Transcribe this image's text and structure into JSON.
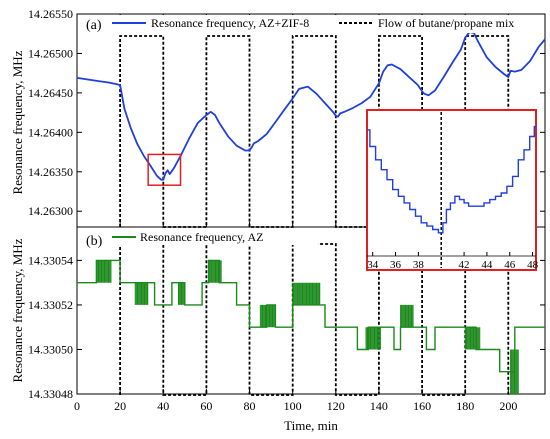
{
  "figure": {
    "x_axis": {
      "label": "Time, min",
      "range": [
        0,
        217
      ],
      "ticks": [
        0,
        20,
        40,
        60,
        80,
        100,
        120,
        140,
        160,
        180,
        200
      ],
      "tick_labels": [
        "0",
        "20",
        "40",
        "60",
        "80",
        "100",
        "120",
        "140",
        "160",
        "180",
        "200"
      ]
    },
    "gas_pulses_min": [
      [
        20,
        40
      ],
      [
        60,
        80
      ],
      [
        100,
        120
      ],
      [
        140,
        160
      ],
      [
        180,
        200
      ]
    ]
  },
  "chart_data": [
    {
      "type": "line",
      "panel_label": "(a)",
      "ylabel": "Resonance frequency, MHz",
      "xlim": [
        0,
        217
      ],
      "ylim": [
        14.2628,
        14.2655
      ],
      "yticks": [
        14.263,
        14.2635,
        14.264,
        14.2645,
        14.265,
        14.2655
      ],
      "ytick_labels": [
        "14.26300",
        "14.26350",
        "14.26400",
        "14.26450",
        "14.26500",
        "14.26550"
      ],
      "legend": [
        "Resonance frequency, AZ+ZIF-8",
        "Flow of butane/propane mix"
      ],
      "legend_position": "top",
      "series": [
        {
          "name": "Resonance frequency, AZ+ZIF-8",
          "color": "#1f3fe0",
          "x": [
            0,
            5,
            10,
            15,
            20,
            22,
            25,
            28,
            31,
            34,
            37,
            39,
            40,
            41,
            42,
            43,
            45,
            48,
            52,
            56,
            60,
            62,
            64,
            66,
            70,
            74,
            78,
            80,
            81,
            82,
            84,
            88,
            92,
            96,
            100,
            103,
            107,
            111,
            115,
            119,
            120,
            121,
            122,
            124,
            128,
            132,
            136,
            140,
            142,
            144,
            146,
            150,
            154,
            158,
            160,
            161,
            163,
            166,
            170,
            174,
            178,
            180,
            182,
            184,
            186,
            190,
            194,
            198,
            200,
            201,
            203,
            206,
            210,
            214,
            217
          ],
          "y": [
            14.26469,
            14.26467,
            14.26465,
            14.26463,
            14.2646,
            14.2643,
            14.26405,
            14.26385,
            14.2637,
            14.26358,
            14.26345,
            14.2634,
            14.2634,
            14.26348,
            14.26352,
            14.26347,
            14.26355,
            14.2637,
            14.26392,
            14.26412,
            14.26422,
            14.26426,
            14.26422,
            14.26412,
            14.26395,
            14.26383,
            14.26377,
            14.26377,
            14.26381,
            14.26386,
            14.26389,
            14.26398,
            14.26413,
            14.26428,
            14.26443,
            14.26455,
            14.26458,
            14.26449,
            14.26437,
            14.26425,
            14.26421,
            14.2642,
            14.26424,
            14.26426,
            14.26431,
            14.26437,
            14.26445,
            14.26462,
            14.26477,
            14.26485,
            14.26486,
            14.2648,
            14.2647,
            14.2646,
            14.26452,
            14.26449,
            14.26447,
            14.26453,
            14.2647,
            14.26488,
            14.26505,
            14.2652,
            14.26527,
            14.26526,
            14.26515,
            14.26495,
            14.26483,
            14.26474,
            14.2647,
            14.26478,
            14.26477,
            14.26479,
            14.2649,
            14.26508,
            14.26518
          ]
        },
        {
          "name": "Flow of butane/propane mix",
          "color": "#000000",
          "style": "dashed",
          "x": [
            20,
            20,
            40,
            40,
            60,
            60,
            80,
            80,
            100,
            100,
            120,
            120,
            140,
            140,
            160,
            160,
            180,
            180,
            200,
            200
          ],
          "y": [
            "off",
            "on",
            "on",
            "off",
            "off",
            "on",
            "on",
            "off",
            "off",
            "on",
            "on",
            "off",
            "off",
            "on",
            "on",
            "off",
            "off",
            "on",
            "on",
            "off"
          ]
        }
      ],
      "highlight_box": {
        "x": [
          33,
          48
        ],
        "y": [
          14.26333,
          14.26372
        ],
        "color": "#e02020"
      }
    },
    {
      "type": "line",
      "panel_label": "(b)",
      "ylabel": "Resonance frequency, MHz",
      "xlim": [
        0,
        217
      ],
      "ylim": [
        14.33048,
        14.330555
      ],
      "yticks": [
        14.33048,
        14.3305,
        14.33052,
        14.33054
      ],
      "ytick_labels": [
        "14.33048",
        "14.33050",
        "14.33052",
        "14.33054"
      ],
      "legend": [
        "Resonance frequency, AZ"
      ],
      "legend_position": "top-left",
      "series": [
        {
          "name": "Resonance frequency, AZ",
          "color": "#1a8a1a",
          "x": [
            0,
            3,
            7,
            9,
            16,
            20,
            27,
            30,
            33,
            36,
            40,
            44,
            47,
            50,
            54,
            58,
            61,
            66,
            70,
            74,
            80,
            84,
            88,
            92,
            97,
            100,
            106,
            112,
            115,
            120,
            124,
            130,
            135,
            139,
            144,
            147,
            150,
            154,
            158,
            162,
            166,
            171,
            176,
            180,
            185,
            188,
            192,
            196,
            200,
            203,
            208,
            213,
            217
          ],
          "y": [
            14.33053,
            14.33053,
            14.33053,
            14.33054,
            14.33054,
            14.33053,
            14.33053,
            14.33053,
            14.33053,
            14.33052,
            14.33052,
            14.33053,
            14.33053,
            14.33052,
            14.33052,
            14.33053,
            14.33054,
            14.33053,
            14.33053,
            14.33052,
            14.33051,
            14.33051,
            14.33052,
            14.33051,
            14.33051,
            14.33052,
            14.33052,
            14.33052,
            14.33051,
            14.33051,
            14.33051,
            14.3305,
            14.33051,
            14.33051,
            14.33051,
            14.3305,
            14.33051,
            14.33051,
            14.33051,
            14.3305,
            14.33051,
            14.33051,
            14.33051,
            14.33051,
            14.3305,
            14.3305,
            14.3305,
            14.33049,
            14.33049,
            14.33051,
            14.33051,
            14.33051,
            14.33051
          ]
        },
        {
          "name": "Flow of butane/propane mix",
          "color": "#000000",
          "style": "dashed",
          "x": [
            20,
            20,
            40,
            40,
            60,
            60,
            80,
            80,
            100,
            100,
            120,
            120,
            140,
            140,
            160,
            160,
            180,
            180,
            200,
            200
          ],
          "y": [
            "off",
            "on",
            "on",
            "off",
            "off",
            "on",
            "on",
            "off",
            "off",
            "on",
            "on",
            "off",
            "off",
            "on",
            "on",
            "off",
            "off",
            "on",
            "on",
            "off"
          ]
        }
      ]
    },
    {
      "type": "line",
      "panel_label": "inset",
      "xlim": [
        33.5,
        48.3
      ],
      "ylim": [
        14.26331,
        14.26375
      ],
      "xticks": [
        34,
        36,
        38,
        42,
        44,
        46,
        48
      ],
      "xtick_labels": [
        "34",
        "36",
        "38",
        "42",
        "44",
        "46",
        "48"
      ],
      "gas_switch_min": 40,
      "border_color": "#e02020",
      "series": [
        {
          "name": "Resonance frequency, AZ+ZIF-8",
          "color": "#1f3fe0",
          "x": [
            33.5,
            34.0,
            34.5,
            35.0,
            35.5,
            36.0,
            36.5,
            37.0,
            37.5,
            38.0,
            38.5,
            39.0,
            39.5,
            40.0,
            40.3,
            40.6,
            41.0,
            41.4,
            41.8,
            42.2,
            42.6,
            43.0,
            43.5,
            44.0,
            44.5,
            45.0,
            45.5,
            46.0,
            46.5,
            47.0,
            47.5,
            48.0,
            48.3
          ],
          "y": [
            14.26369,
            14.26364,
            14.2636,
            14.26357,
            14.26354,
            14.26351,
            14.26349,
            14.26347,
            14.26345,
            14.26343,
            14.26341,
            14.2634,
            14.26339,
            14.26338,
            14.26341,
            14.26345,
            14.26347,
            14.26349,
            14.26348,
            14.26347,
            14.26346,
            14.26346,
            14.26346,
            14.26347,
            14.26348,
            14.26349,
            14.2635,
            14.26352,
            14.26355,
            14.2636,
            14.26363,
            14.26367,
            14.2637
          ]
        }
      ]
    }
  ]
}
